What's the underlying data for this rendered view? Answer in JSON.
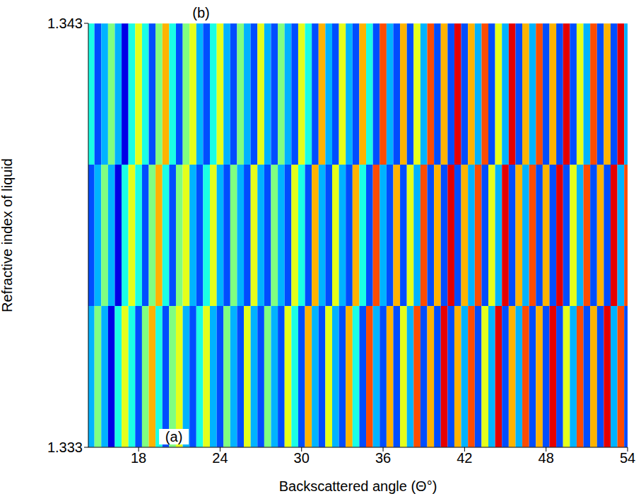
{
  "chart_data": {
    "type": "heatmap",
    "xlabel": "Backscattered angle (Θ°)",
    "ylabel": "Refractive index of liquid",
    "xlim": [
      14.3,
      54
    ],
    "ylim": [
      1.333,
      1.343
    ],
    "xticks": [
      18,
      24,
      30,
      36,
      42,
      48,
      54
    ],
    "yticks": [
      1.333,
      1.343
    ],
    "annotations": [
      {
        "text": "(a)",
        "x": 20.6,
        "y": 1.333
      },
      {
        "text": "(b)",
        "x": 22.6,
        "y": 1.343
      }
    ],
    "cells": {
      "x": [
        14.5,
        15,
        15.5,
        16,
        16.5,
        17,
        17.5,
        18,
        18.5,
        19,
        19.5,
        20,
        20.5,
        21,
        21.5,
        22,
        22.5,
        23,
        23.5,
        24,
        24.5,
        25,
        25.5,
        26,
        26.5,
        27,
        27.5,
        28,
        28.5,
        29,
        29.5,
        30,
        30.5,
        31,
        31.5,
        32,
        32.5,
        33,
        33.5,
        34,
        34.5,
        35,
        35.5,
        36,
        36.5,
        37,
        37.5,
        38,
        38.5,
        39,
        39.5,
        40,
        40.5,
        41,
        41.5,
        42,
        42.5,
        43,
        43.5,
        44,
        44.5,
        45,
        45.5,
        46,
        46.5,
        47,
        47.5,
        48,
        48.5,
        49,
        49.5,
        50,
        50.5,
        51,
        51.5,
        52,
        52.5,
        53,
        53.5,
        54
      ],
      "y": [
        1.33467,
        1.338,
        1.34133
      ],
      "value_range": [
        0,
        1
      ],
      "values": [
        [
          0.3,
          0.5,
          0.3,
          0.1,
          0.4,
          0.6,
          0.4,
          0.2,
          0.5,
          0.7,
          0.4,
          0.2,
          0.5,
          0.6,
          0.3,
          0.2,
          0.4,
          0.6,
          0.3,
          0.2,
          0.5,
          0.3,
          0.2,
          0.6,
          0.3,
          0.2,
          0.5,
          0.3,
          0.2,
          0.6,
          0.4,
          0.2,
          0.7,
          0.3,
          0.2,
          0.6,
          0.3,
          0.2,
          0.7,
          0.4,
          0.2,
          0.8,
          0.3,
          0.2,
          0.7,
          0.2,
          0.6,
          0.3,
          0.8,
          0.2,
          0.7,
          0.2,
          0.9,
          0.2,
          0.7,
          0.3,
          0.8,
          0.2,
          0.6,
          0.3,
          0.9,
          0.2,
          0.7,
          0.3,
          0.8,
          0.2,
          0.7,
          0.2,
          0.9,
          0.2,
          0.6,
          0.3,
          0.8,
          0.2,
          0.7,
          0.2,
          0.9,
          0.3,
          0.8,
          0.2
        ],
        [
          0.2,
          0.3,
          0.5,
          0.3,
          0.1,
          0.4,
          0.6,
          0.4,
          0.2,
          0.5,
          0.7,
          0.4,
          0.2,
          0.5,
          0.6,
          0.3,
          0.2,
          0.4,
          0.6,
          0.3,
          0.2,
          0.5,
          0.3,
          0.2,
          0.6,
          0.3,
          0.2,
          0.5,
          0.3,
          0.2,
          0.6,
          0.4,
          0.2,
          0.7,
          0.3,
          0.2,
          0.6,
          0.3,
          0.2,
          0.7,
          0.4,
          0.2,
          0.8,
          0.3,
          0.2,
          0.7,
          0.2,
          0.6,
          0.3,
          0.8,
          0.2,
          0.7,
          0.2,
          0.9,
          0.2,
          0.7,
          0.3,
          0.8,
          0.2,
          0.6,
          0.3,
          0.9,
          0.2,
          0.7,
          0.3,
          0.8,
          0.2,
          0.7,
          0.2,
          0.9,
          0.2,
          0.6,
          0.3,
          0.8,
          0.2,
          0.7,
          0.2,
          0.9,
          0.3,
          0.8
        ],
        [
          0.4,
          0.2,
          0.3,
          0.5,
          0.3,
          0.1,
          0.4,
          0.6,
          0.4,
          0.2,
          0.5,
          0.7,
          0.4,
          0.2,
          0.5,
          0.6,
          0.3,
          0.2,
          0.4,
          0.6,
          0.3,
          0.2,
          0.5,
          0.3,
          0.2,
          0.6,
          0.3,
          0.2,
          0.5,
          0.3,
          0.2,
          0.6,
          0.4,
          0.2,
          0.7,
          0.3,
          0.2,
          0.6,
          0.3,
          0.2,
          0.7,
          0.4,
          0.2,
          0.8,
          0.3,
          0.2,
          0.7,
          0.2,
          0.6,
          0.3,
          0.8,
          0.2,
          0.7,
          0.2,
          0.9,
          0.2,
          0.7,
          0.3,
          0.8,
          0.2,
          0.6,
          0.3,
          0.9,
          0.2,
          0.7,
          0.3,
          0.8,
          0.2,
          0.7,
          0.2,
          0.9,
          0.2,
          0.6,
          0.3,
          0.8,
          0.2,
          0.7,
          0.2,
          0.9,
          0.3
        ]
      ]
    }
  }
}
